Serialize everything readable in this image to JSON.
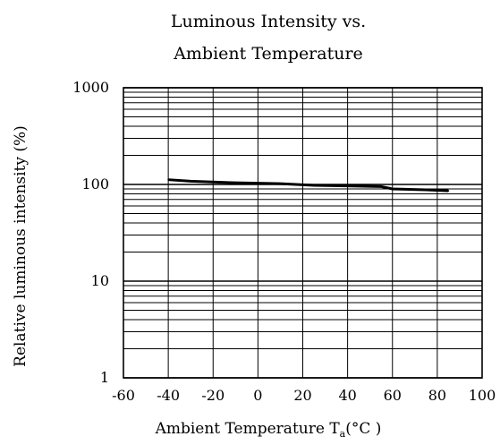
{
  "chart_data": {
    "type": "line",
    "title_line1": "Luminous Intensity vs.",
    "title_line2": "Ambient Temperature",
    "xlabel_main": "Ambient Temperature T",
    "xlabel_sub": "a",
    "xlabel_unit": "(°C )",
    "ylabel": "Relative luminous intensity (%)",
    "x_scale": "linear",
    "y_scale": "log",
    "xlim": [
      -60,
      100
    ],
    "ylim": [
      1,
      1000
    ],
    "x_ticks": [
      -60,
      -40,
      -20,
      0,
      20,
      40,
      60,
      80,
      100
    ],
    "x_tick_labels": [
      "-60",
      "-40",
      "-20",
      "0",
      "20",
      "40",
      "60",
      "80",
      "100"
    ],
    "y_ticks": [
      1,
      10,
      100,
      1000
    ],
    "y_tick_labels": [
      "1",
      "10",
      "100",
      "1000"
    ],
    "grid": true,
    "series": [
      {
        "x": [
          -40,
          -30,
          -10,
          10,
          25,
          55,
          60,
          75,
          85
        ],
        "y": [
          112,
          108,
          104,
          102,
          98,
          95,
          90,
          88,
          86
        ]
      }
    ],
    "colors": {
      "line": "#000000",
      "grid": "#000000",
      "background": "#ffffff"
    }
  }
}
